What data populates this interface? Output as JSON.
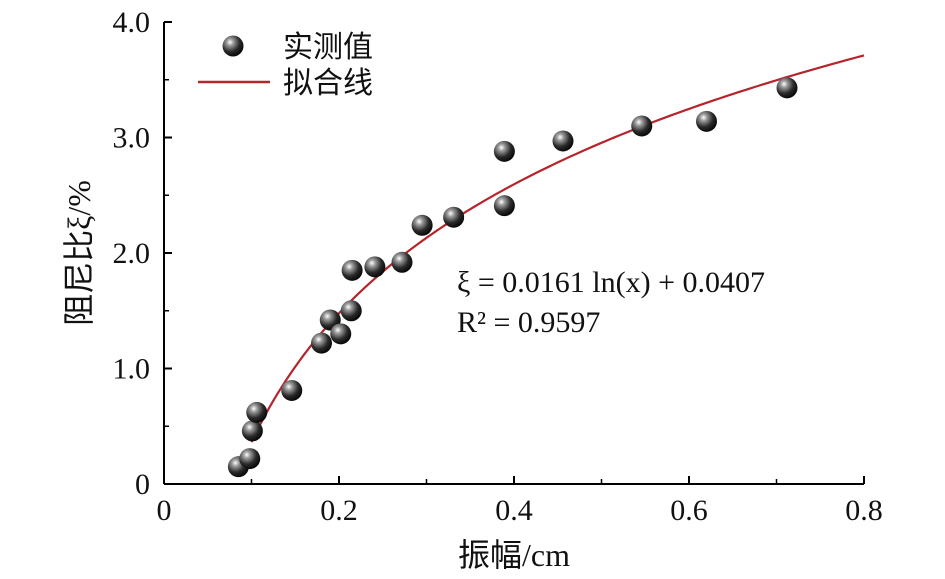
{
  "chart_data": {
    "type": "scatter",
    "xlabel": "振幅/cm",
    "ylabel": "阻尼比ξ/%",
    "xlim": [
      0,
      0.8
    ],
    "ylim": [
      0,
      4.0
    ],
    "x_ticks": [
      0,
      0.2,
      0.4,
      0.6,
      0.8
    ],
    "x_tick_labels": [
      "0",
      "0.2",
      "0.4",
      "0.6",
      "0.8"
    ],
    "y_ticks": [
      0,
      1.0,
      2.0,
      3.0,
      4.0
    ],
    "y_tick_labels": [
      "0",
      "1.0",
      "2.0",
      "3.0",
      "4.0"
    ],
    "grid": false,
    "legend_position": "top-left",
    "series": [
      {
        "name": "实测值",
        "type": "scatter",
        "marker_color": "#1a1a1a",
        "x": [
          0.085,
          0.098,
          0.101,
          0.106,
          0.146,
          0.18,
          0.19,
          0.202,
          0.214,
          0.215,
          0.241,
          0.272,
          0.295,
          0.331,
          0.389,
          0.389,
          0.456,
          0.546,
          0.62,
          0.712
        ],
        "y": [
          0.15,
          0.22,
          0.46,
          0.62,
          0.81,
          1.22,
          1.42,
          1.3,
          1.5,
          1.85,
          1.88,
          1.92,
          2.24,
          2.31,
          2.41,
          2.88,
          2.97,
          3.1,
          3.14,
          3.43
        ]
      },
      {
        "name": "拟合线",
        "type": "line",
        "line_color": "#b5252c",
        "equation": {
          "a": 1.61,
          "b": 4.07,
          "x_from": 0.1,
          "x_to": 0.8
        }
      }
    ],
    "annotations": [
      {
        "id": "eq",
        "text": "ξ = 0.0161 ln(x) + 0.0407"
      },
      {
        "id": "r2",
        "text": "R² = 0.9597"
      }
    ]
  }
}
